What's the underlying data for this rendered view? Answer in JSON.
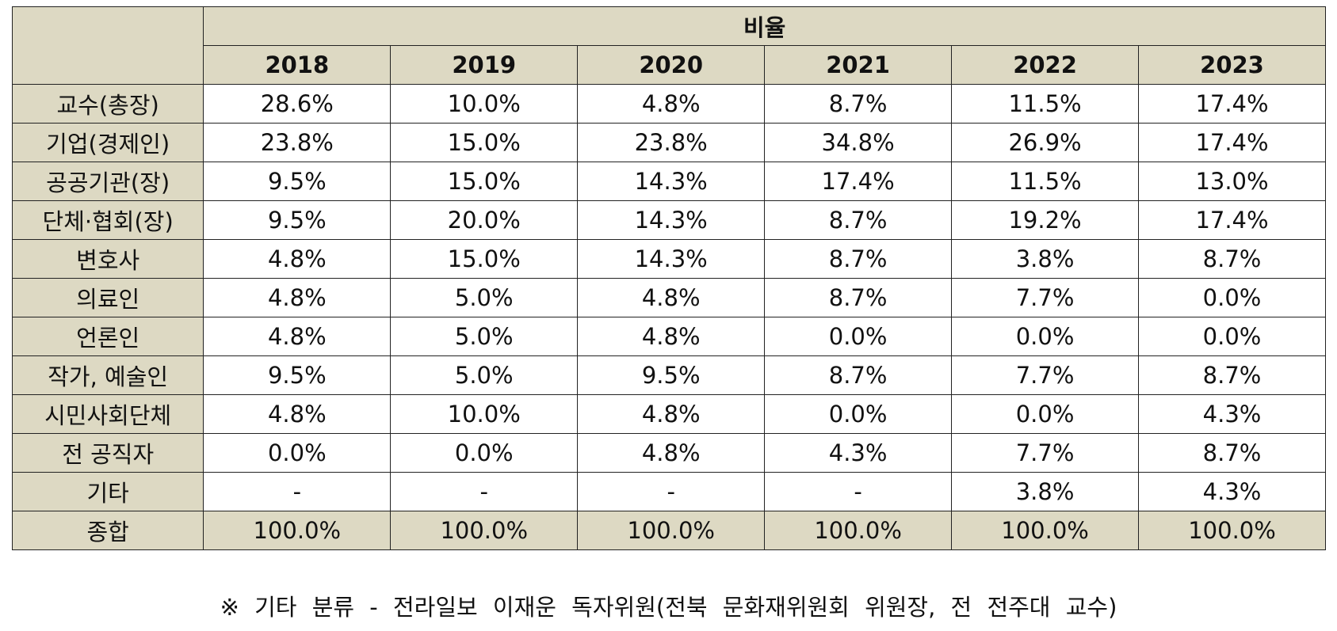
{
  "header": {
    "corner": "",
    "group_title": "비율",
    "years": [
      "2018",
      "2019",
      "2020",
      "2021",
      "2022",
      "2023"
    ]
  },
  "rows": [
    {
      "label": "교수(총장)",
      "values": [
        "28.6%",
        "10.0%",
        "4.8%",
        "8.7%",
        "11.5%",
        "17.4%"
      ]
    },
    {
      "label": "기업(경제인)",
      "values": [
        "23.8%",
        "15.0%",
        "23.8%",
        "34.8%",
        "26.9%",
        "17.4%"
      ]
    },
    {
      "label": "공공기관(장)",
      "values": [
        "9.5%",
        "15.0%",
        "14.3%",
        "17.4%",
        "11.5%",
        "13.0%"
      ]
    },
    {
      "label": "단체·협회(장)",
      "values": [
        "9.5%",
        "20.0%",
        "14.3%",
        "8.7%",
        "19.2%",
        "17.4%"
      ]
    },
    {
      "label": "변호사",
      "values": [
        "4.8%",
        "15.0%",
        "14.3%",
        "8.7%",
        "3.8%",
        "8.7%"
      ]
    },
    {
      "label": "의료인",
      "values": [
        "4.8%",
        "5.0%",
        "4.8%",
        "8.7%",
        "7.7%",
        "0.0%"
      ]
    },
    {
      "label": "언론인",
      "values": [
        "4.8%",
        "5.0%",
        "4.8%",
        "0.0%",
        "0.0%",
        "0.0%"
      ]
    },
    {
      "label": "작가, 예술인",
      "values": [
        "9.5%",
        "5.0%",
        "9.5%",
        "8.7%",
        "7.7%",
        "8.7%"
      ]
    },
    {
      "label": "시민사회단체",
      "values": [
        "4.8%",
        "10.0%",
        "4.8%",
        "0.0%",
        "0.0%",
        "4.3%"
      ]
    },
    {
      "label": "전 공직자",
      "values": [
        "0.0%",
        "0.0%",
        "4.8%",
        "4.3%",
        "7.7%",
        "8.7%"
      ]
    },
    {
      "label": "기타",
      "values": [
        "-",
        "-",
        "-",
        "-",
        "3.8%",
        "4.3%"
      ]
    }
  ],
  "total": {
    "label": "종합",
    "values": [
      "100.0%",
      "100.0%",
      "100.0%",
      "100.0%",
      "100.0%",
      "100.0%"
    ]
  },
  "footnote": "※ 기타 분류 - 전라일보 이재운 독자위원(전북 문화재위원회 위원장, 전 전주대 교수)"
}
